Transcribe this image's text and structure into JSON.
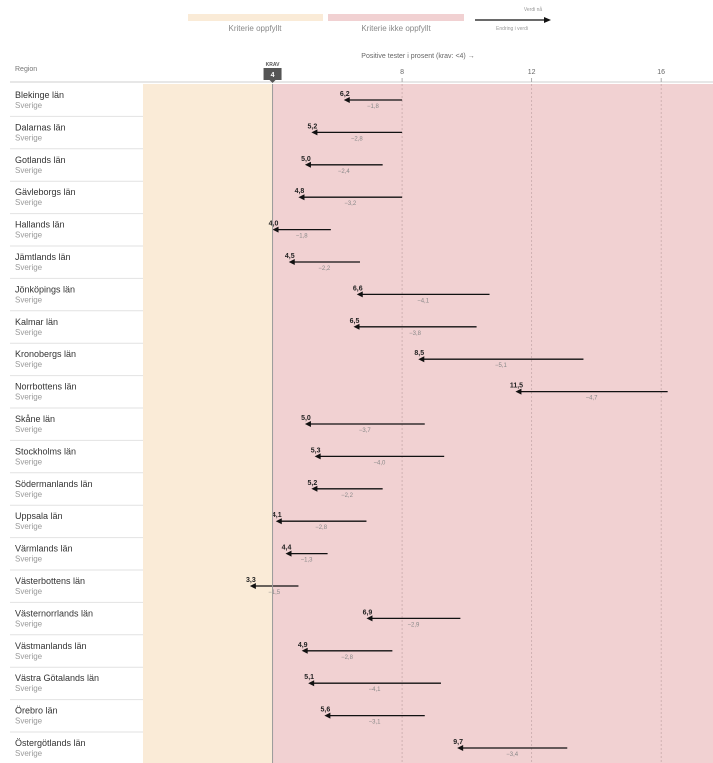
{
  "legend": {
    "met_label": "Kriterie oppfyllt",
    "not_met_label": "Kriterie ikke oppfyllt",
    "arrow_top_label": "Verdi nå",
    "arrow_bottom_label": "Endring i verdi"
  },
  "column_header": "Region",
  "axis_title": "Positive tester i prosent (krav: <4) →",
  "krav": {
    "label": "KRAV",
    "value": "4"
  },
  "colors": {
    "met": "#faebd7",
    "not_met": "#f1d1d2",
    "arrow": "#111111",
    "krav_marker": "#555555"
  },
  "chart_data": {
    "type": "arrow",
    "title": "",
    "xlabel": "Positive tester i prosent (krav: <4) →",
    "xlim": [
      0,
      17.6
    ],
    "xticks": [
      8,
      12,
      16
    ],
    "threshold": 4,
    "rows": [
      {
        "region": "Blekinge län",
        "sub": "Sverige",
        "value": 6.2,
        "value_label": "6,2",
        "change": -1.8,
        "change_label": "−1,8"
      },
      {
        "region": "Dalarnas län",
        "sub": "Sverige",
        "value": 5.2,
        "value_label": "5,2",
        "change": -2.8,
        "change_label": "−2,8"
      },
      {
        "region": "Gotlands län",
        "sub": "Sverige",
        "value": 5.0,
        "value_label": "5,0",
        "change": -2.4,
        "change_label": "−2,4"
      },
      {
        "region": "Gävleborgs län",
        "sub": "Sverige",
        "value": 4.8,
        "value_label": "4,8",
        "change": -3.2,
        "change_label": "−3,2"
      },
      {
        "region": "Hallands län",
        "sub": "Sverige",
        "value": 4.0,
        "value_label": "4,0",
        "change": -1.8,
        "change_label": "−1,8"
      },
      {
        "region": "Jämtlands län",
        "sub": "Sverige",
        "value": 4.5,
        "value_label": "4,5",
        "change": -2.2,
        "change_label": "−2,2"
      },
      {
        "region": "Jönköpings län",
        "sub": "Sverige",
        "value": 6.6,
        "value_label": "6,6",
        "change": -4.1,
        "change_label": "−4,1"
      },
      {
        "region": "Kalmar län",
        "sub": "Sverige",
        "value": 6.5,
        "value_label": "6,5",
        "change": -3.8,
        "change_label": "−3,8"
      },
      {
        "region": "Kronobergs län",
        "sub": "Sverige",
        "value": 8.5,
        "value_label": "8,5",
        "change": -5.1,
        "change_label": "−5,1"
      },
      {
        "region": "Norrbottens län",
        "sub": "Sverige",
        "value": 11.5,
        "value_label": "11,5",
        "change": -4.7,
        "change_label": "−4,7"
      },
      {
        "region": "Skåne län",
        "sub": "Sverige",
        "value": 5.0,
        "value_label": "5,0",
        "change": -3.7,
        "change_label": "−3,7"
      },
      {
        "region": "Stockholms län",
        "sub": "Sverige",
        "value": 5.3,
        "value_label": "5,3",
        "change": -4.0,
        "change_label": "−4,0"
      },
      {
        "region": "Södermanlands län",
        "sub": "Sverige",
        "value": 5.2,
        "value_label": "5,2",
        "change": -2.2,
        "change_label": "−2,2"
      },
      {
        "region": "Uppsala län",
        "sub": "Sverige",
        "value": 4.1,
        "value_label": "4,1",
        "change": -2.8,
        "change_label": "−2,8"
      },
      {
        "region": "Värmlands län",
        "sub": "Sverige",
        "value": 4.4,
        "value_label": "4,4",
        "change": -1.3,
        "change_label": "−1,3"
      },
      {
        "region": "Västerbottens län",
        "sub": "Sverige",
        "value": 3.3,
        "value_label": "3,3",
        "change": -1.5,
        "change_label": "−1,5"
      },
      {
        "region": "Västernorrlands län",
        "sub": "Sverige",
        "value": 6.9,
        "value_label": "6,9",
        "change": -2.9,
        "change_label": "−2,9"
      },
      {
        "region": "Västmanlands län",
        "sub": "Sverige",
        "value": 4.9,
        "value_label": "4,9",
        "change": -2.8,
        "change_label": "−2,8"
      },
      {
        "region": "Västra Götalands län",
        "sub": "Sverige",
        "value": 5.1,
        "value_label": "5,1",
        "change": -4.1,
        "change_label": "−4,1"
      },
      {
        "region": "Örebro län",
        "sub": "Sverige",
        "value": 5.6,
        "value_label": "5,6",
        "change": -3.1,
        "change_label": "−3,1"
      },
      {
        "region": "Östergötlands län",
        "sub": "Sverige",
        "value": 9.7,
        "value_label": "9,7",
        "change": -3.4,
        "change_label": "−3,4"
      }
    ]
  }
}
